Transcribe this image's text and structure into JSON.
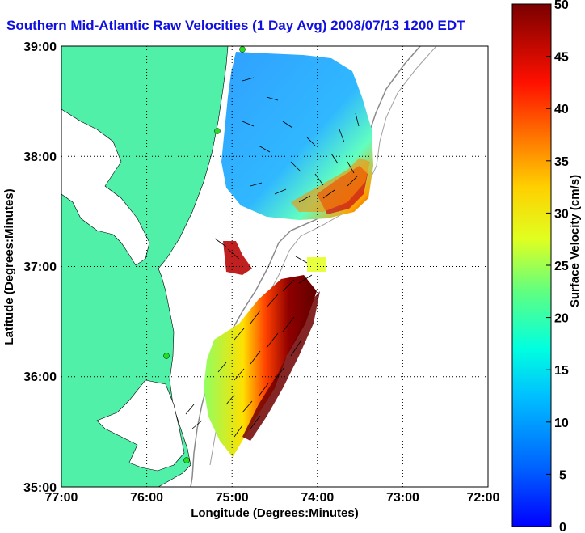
{
  "title": "Southern Mid-Atlantic Raw Velocities (1 Day Avg) 2008/07/13 1200 EDT",
  "xlabel": "Longitude (Degrees:Minutes)",
  "ylabel": "Latitude (Degrees:Minutes)",
  "x_ticks": [
    "77:00",
    "76:00",
    "75:00",
    "74:00",
    "73:00",
    "72:00"
  ],
  "y_ticks": [
    "39:00",
    "38:00",
    "37:00",
    "36:00",
    "35:00"
  ],
  "colorbar": {
    "label": "Surface Velocity (cm/s)",
    "ticks": [
      "50",
      "45",
      "40",
      "35",
      "30",
      "25",
      "20",
      "15",
      "10",
      "5",
      "0"
    ],
    "range": [
      0,
      50
    ],
    "colormap": "jet"
  },
  "colors": {
    "land": "#50f0a8",
    "title": "#1010e0",
    "station": "#20e020"
  },
  "chart_data": {
    "type": "heatmap",
    "title": "Southern Mid-Atlantic Raw Velocities (1 Day Avg) 2008/07/13 1200 EDT",
    "xlabel": "Longitude (Degrees:Minutes)",
    "ylabel": "Latitude (Degrees:Minutes)",
    "xlim": [
      "77:00",
      "72:00"
    ],
    "ylim": [
      "35:00",
      "39:00"
    ],
    "grid": true,
    "value_range_cm_s": [
      0,
      50
    ]
  }
}
